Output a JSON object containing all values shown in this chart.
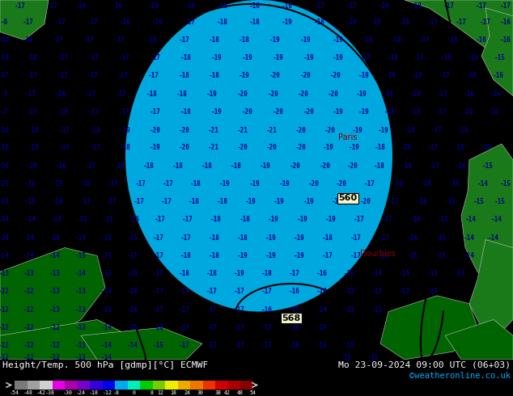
{
  "title_left": "Height/Temp. 500 hPa [gdmp][°C] ECMWF",
  "title_right": "Mo 23-09-2024 09:00 UTC (06+03)",
  "credit": "©weatheronline.co.uk",
  "colorbar_tick_labels": [
    "-54",
    "-48",
    "-42",
    "-38",
    "-30",
    "-24",
    "-18",
    "-12",
    "-8",
    "0",
    "8",
    "12",
    "18",
    "24",
    "30",
    "38",
    "42",
    "48",
    "54"
  ],
  "colorbar_tick_vals": [
    -54,
    -48,
    -42,
    -38,
    -30,
    -24,
    -18,
    -12,
    -8,
    0,
    8,
    12,
    18,
    24,
    30,
    38,
    42,
    48,
    54
  ],
  "colorbar_colors": [
    "#7a7a7a",
    "#a0a0a0",
    "#d0d0d0",
    "#e600e6",
    "#aa00aa",
    "#7700cc",
    "#3300dd",
    "#0000ee",
    "#00aaee",
    "#00eebb",
    "#00cc00",
    "#77cc00",
    "#eeee00",
    "#eeaa00",
    "#ee7700",
    "#ee3300",
    "#cc0000",
    "#aa0000",
    "#880000"
  ],
  "bg_light_cyan": "#00e8f8",
  "bg_dark_cyan": "#00a8e0",
  "land_dark": "#006400",
  "land_med": "#1a7a1a",
  "land_light": "#2d8b2d",
  "coast_color": "#c8c8c8",
  "contour_color": "#000000",
  "temp_color": "#000088",
  "label_560_color": "#000000",
  "bottom_bg": "#000000",
  "bottom_text_color": "#ffffff",
  "credit_color": "#00aaff"
}
